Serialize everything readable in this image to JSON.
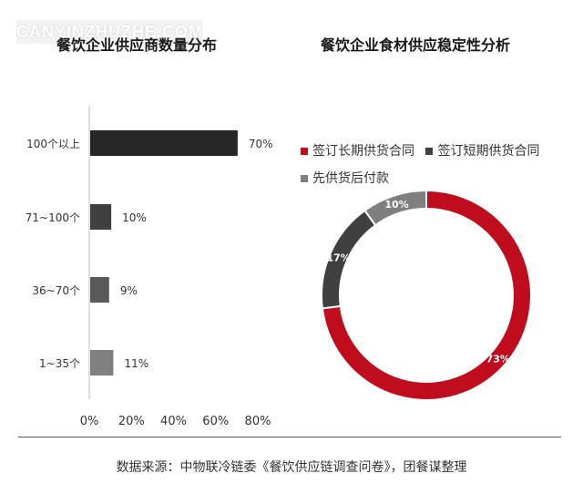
{
  "watermark": "CANYINZHUZHE.COM",
  "source": "数据来源：中物联冷链委《餐饮供应链调查问卷》，团餐谋整理",
  "chart_data": [
    {
      "type": "bar",
      "orientation": "horizontal",
      "title": "餐饮企业供应商数量分布",
      "categories": [
        "100个以上",
        "71~100个",
        "36~70个",
        "1~35个"
      ],
      "values": [
        70,
        10,
        9,
        11
      ],
      "value_labels": [
        "70%",
        "10%",
        "9%",
        "11%"
      ],
      "colors": [
        "#262626",
        "#404040",
        "#595959",
        "#808080"
      ],
      "xlim": [
        0,
        80
      ],
      "xticks": [
        "0%",
        "20%",
        "40%",
        "60%",
        "80%"
      ],
      "grid": false
    },
    {
      "type": "pie",
      "style": "donut",
      "title": "餐饮企业食材供应稳定性分析",
      "labels": [
        "签订长期供货合同",
        "签订短期供货合同",
        "先供货后付款"
      ],
      "values": [
        73,
        17,
        10
      ],
      "value_labels": [
        "73%",
        "17%",
        "10%"
      ],
      "colors": [
        "#c00d1e",
        "#404040",
        "#7f7f7f"
      ],
      "legend_position": "top"
    }
  ]
}
